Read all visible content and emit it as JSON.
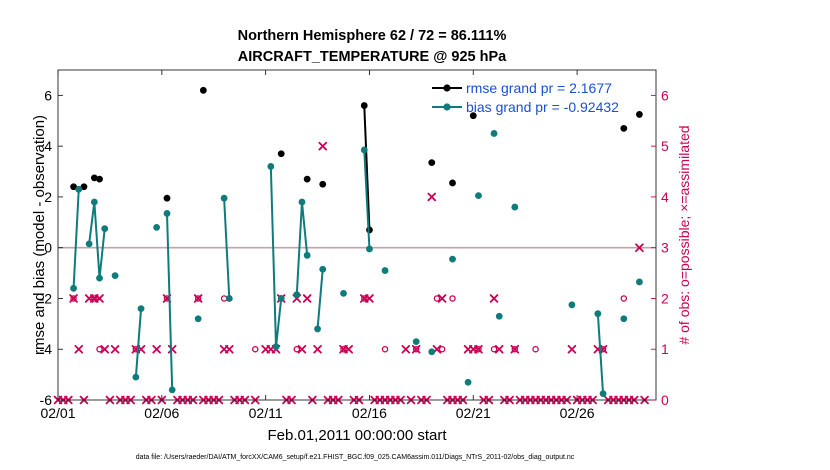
{
  "chart_data": {
    "type": "line",
    "title_line1": "Northern Hemisphere 62 / 72 = 86.111%",
    "title_line2": "AIRCRAFT_TEMPERATURE @ 925 hPa",
    "xlabel": "Feb.01,2011 00:00:00 start",
    "ylabel_left": "rmse and bias (model - observation)",
    "ylabel_right": "# of obs: o=possible; ×=assimilated",
    "footer": "data file: /Users/raeder/DAI/ATM_forcXX/CAM6_setup/f.e21.FHIST_BGC.f09_025.CAM6assim.011/Diags_NTrS_2011-02/obs_diag_output.nc",
    "xlim": [
      1,
      29.8
    ],
    "ylim_left": [
      -6,
      7
    ],
    "ylim_right": [
      0,
      6.5
    ],
    "x_ticks": [
      1,
      6,
      11,
      16,
      21,
      26
    ],
    "x_tick_labels": [
      "02/01",
      "02/06",
      "02/11",
      "02/16",
      "02/21",
      "02/26"
    ],
    "y_left_ticks": [
      -6,
      -4,
      -2,
      0,
      2,
      4,
      6
    ],
    "y_right_ticks": [
      0,
      1,
      2,
      3,
      4,
      5,
      6
    ],
    "zero_line": 0,
    "colors": {
      "rmse": "#000000",
      "bias": "#0f7b7b",
      "obs": "#cc0055",
      "legend_text": "#1a4fd6",
      "zero_line": "#c8a0a8"
    },
    "legend": {
      "placement": "top-right",
      "rmse_label": "rmse grand pr = 2.1677",
      "bias_label": "bias grand pr = -0.92432"
    },
    "series": [
      {
        "name": "rmse",
        "segments": [
          [
            [
              1.75,
              2.4
            ]
          ],
          [
            [
              2.25,
              2.4
            ]
          ],
          [
            [
              2.75,
              2.75
            ]
          ],
          [
            [
              3.0,
              2.7
            ]
          ],
          [
            [
              6.25,
              1.95
            ]
          ],
          [
            [
              8.0,
              6.2
            ]
          ],
          [
            [
              11.75,
              3.7
            ]
          ],
          [
            [
              13.0,
              2.7
            ]
          ],
          [
            [
              13.75,
              2.5
            ]
          ],
          [
            [
              15.75,
              5.6
            ],
            [
              16.0,
              0.7
            ]
          ],
          [
            [
              19.0,
              3.35
            ]
          ],
          [
            [
              20.0,
              2.55
            ]
          ],
          [
            [
              21.0,
              5.2
            ]
          ],
          [
            [
              28.25,
              4.7
            ]
          ],
          [
            [
              29.0,
              5.25
            ]
          ]
        ]
      },
      {
        "name": "bias",
        "segments": [
          [
            [
              1.75,
              -1.6
            ],
            [
              2.0,
              2.3
            ]
          ],
          [
            [
              2.5,
              0.15
            ],
            [
              2.75,
              1.8
            ],
            [
              3.0,
              -1.2
            ],
            [
              3.25,
              0.75
            ]
          ],
          [
            [
              3.75,
              -1.1
            ]
          ],
          [
            [
              4.75,
              -5.1
            ],
            [
              5.0,
              -2.4
            ]
          ],
          [
            [
              5.75,
              0.8
            ]
          ],
          [
            [
              6.25,
              1.35
            ],
            [
              6.5,
              -5.6
            ]
          ],
          [
            [
              7.75,
              -2.8
            ]
          ],
          [
            [
              9.0,
              1.95
            ],
            [
              9.25,
              -2.0
            ]
          ],
          [
            [
              11.25,
              3.2
            ],
            [
              11.5,
              -3.9
            ],
            [
              11.75,
              -2.0
            ]
          ],
          [
            [
              12.5,
              -1.85
            ],
            [
              12.75,
              1.8
            ],
            [
              13.0,
              -0.3
            ]
          ],
          [
            [
              13.5,
              -3.2
            ],
            [
              13.75,
              -0.85
            ]
          ],
          [
            [
              14.75,
              -1.8
            ]
          ],
          [
            [
              15.75,
              3.85
            ],
            [
              16.0,
              -0.05
            ]
          ],
          [
            [
              16.75,
              -0.9
            ]
          ],
          [
            [
              18.25,
              -3.7
            ]
          ],
          [
            [
              19.0,
              -4.1
            ]
          ],
          [
            [
              20.0,
              -0.45
            ]
          ],
          [
            [
              20.75,
              -5.3
            ]
          ],
          [
            [
              21.25,
              2.05
            ]
          ],
          [
            [
              22.0,
              4.5
            ]
          ],
          [
            [
              22.25,
              -2.7
            ]
          ],
          [
            [
              23.0,
              1.6
            ]
          ],
          [
            [
              25.75,
              -2.25
            ]
          ],
          [
            [
              27.0,
              -2.6
            ],
            [
              27.25,
              -5.75
            ]
          ],
          [
            [
              28.25,
              -2.8
            ]
          ],
          [
            [
              29.0,
              -1.35
            ]
          ]
        ]
      }
    ],
    "obs_assimilated": [
      {
        "x": 1.0,
        "n": 0
      },
      {
        "x": 1.25,
        "n": 0
      },
      {
        "x": 1.5,
        "n": 0
      },
      {
        "x": 1.75,
        "n": 2
      },
      {
        "x": 2.0,
        "n": 1
      },
      {
        "x": 2.25,
        "n": 0
      },
      {
        "x": 2.5,
        "n": 2
      },
      {
        "x": 2.75,
        "n": 2
      },
      {
        "x": 3.0,
        "n": 2
      },
      {
        "x": 3.25,
        "n": 1
      },
      {
        "x": 3.5,
        "n": 0
      },
      {
        "x": 3.75,
        "n": 1
      },
      {
        "x": 4.0,
        "n": 0
      },
      {
        "x": 4.25,
        "n": 0
      },
      {
        "x": 4.5,
        "n": 0
      },
      {
        "x": 4.75,
        "n": 1
      },
      {
        "x": 5.0,
        "n": 1
      },
      {
        "x": 5.25,
        "n": 0
      },
      {
        "x": 5.5,
        "n": 0
      },
      {
        "x": 5.75,
        "n": 1
      },
      {
        "x": 6.0,
        "n": 0
      },
      {
        "x": 6.25,
        "n": 2
      },
      {
        "x": 6.5,
        "n": 1
      },
      {
        "x": 6.75,
        "n": 0
      },
      {
        "x": 7.0,
        "n": 0
      },
      {
        "x": 7.25,
        "n": 0
      },
      {
        "x": 7.5,
        "n": 0
      },
      {
        "x": 7.75,
        "n": 2
      },
      {
        "x": 8.0,
        "n": 0
      },
      {
        "x": 8.25,
        "n": 0
      },
      {
        "x": 8.5,
        "n": 0
      },
      {
        "x": 8.75,
        "n": 0
      },
      {
        "x": 9.0,
        "n": 1
      },
      {
        "x": 9.25,
        "n": 1
      },
      {
        "x": 9.5,
        "n": 0
      },
      {
        "x": 9.75,
        "n": 0
      },
      {
        "x": 10.0,
        "n": 0
      },
      {
        "x": 10.5,
        "n": 0
      },
      {
        "x": 11.0,
        "n": 1
      },
      {
        "x": 11.25,
        "n": 1
      },
      {
        "x": 11.5,
        "n": 1
      },
      {
        "x": 11.75,
        "n": 2
      },
      {
        "x": 12.0,
        "n": 0
      },
      {
        "x": 12.25,
        "n": 0
      },
      {
        "x": 12.5,
        "n": 2
      },
      {
        "x": 12.75,
        "n": 1
      },
      {
        "x": 13.0,
        "n": 2
      },
      {
        "x": 13.25,
        "n": 0
      },
      {
        "x": 13.5,
        "n": 1
      },
      {
        "x": 13.75,
        "n": 5
      },
      {
        "x": 14.0,
        "n": 0
      },
      {
        "x": 14.25,
        "n": 0
      },
      {
        "x": 14.5,
        "n": 0
      },
      {
        "x": 14.75,
        "n": 1
      },
      {
        "x": 15.0,
        "n": 1
      },
      {
        "x": 15.25,
        "n": 0
      },
      {
        "x": 15.5,
        "n": 0
      },
      {
        "x": 15.75,
        "n": 2
      },
      {
        "x": 16.0,
        "n": 2
      },
      {
        "x": 16.25,
        "n": 0
      },
      {
        "x": 16.5,
        "n": 0
      },
      {
        "x": 16.75,
        "n": 0
      },
      {
        "x": 17.0,
        "n": 0
      },
      {
        "x": 17.25,
        "n": 0
      },
      {
        "x": 17.5,
        "n": 0
      },
      {
        "x": 17.75,
        "n": 1
      },
      {
        "x": 18.0,
        "n": 0
      },
      {
        "x": 18.25,
        "n": 1
      },
      {
        "x": 18.5,
        "n": 0
      },
      {
        "x": 18.75,
        "n": 0
      },
      {
        "x": 19.0,
        "n": 4
      },
      {
        "x": 19.25,
        "n": 1
      },
      {
        "x": 19.5,
        "n": 2
      },
      {
        "x": 19.75,
        "n": 0
      },
      {
        "x": 20.0,
        "n": 0
      },
      {
        "x": 20.25,
        "n": 0
      },
      {
        "x": 20.5,
        "n": 0
      },
      {
        "x": 20.75,
        "n": 1
      },
      {
        "x": 21.0,
        "n": 1
      },
      {
        "x": 21.25,
        "n": 1
      },
      {
        "x": 21.5,
        "n": 0
      },
      {
        "x": 21.75,
        "n": 0
      },
      {
        "x": 22.0,
        "n": 2
      },
      {
        "x": 22.25,
        "n": 1
      },
      {
        "x": 22.5,
        "n": 0
      },
      {
        "x": 22.75,
        "n": 0
      },
      {
        "x": 23.0,
        "n": 1
      },
      {
        "x": 23.25,
        "n": 0
      },
      {
        "x": 23.5,
        "n": 0
      },
      {
        "x": 23.75,
        "n": 0
      },
      {
        "x": 24.0,
        "n": 0
      },
      {
        "x": 24.25,
        "n": 0
      },
      {
        "x": 24.5,
        "n": 0
      },
      {
        "x": 24.75,
        "n": 0
      },
      {
        "x": 25.0,
        "n": 0
      },
      {
        "x": 25.25,
        "n": 0
      },
      {
        "x": 25.5,
        "n": 0
      },
      {
        "x": 25.75,
        "n": 1
      },
      {
        "x": 26.0,
        "n": 0
      },
      {
        "x": 26.25,
        "n": 0
      },
      {
        "x": 26.5,
        "n": 0
      },
      {
        "x": 26.75,
        "n": 0
      },
      {
        "x": 27.0,
        "n": 1
      },
      {
        "x": 27.25,
        "n": 1
      },
      {
        "x": 27.5,
        "n": 0
      },
      {
        "x": 27.75,
        "n": 0
      },
      {
        "x": 28.0,
        "n": 0
      },
      {
        "x": 28.25,
        "n": 0
      },
      {
        "x": 28.5,
        "n": 0
      },
      {
        "x": 28.75,
        "n": 0
      },
      {
        "x": 29.0,
        "n": 3
      },
      {
        "x": 29.25,
        "n": 0
      }
    ],
    "obs_possible": [
      {
        "x": 1.75,
        "n": 2
      },
      {
        "x": 2.75,
        "n": 2
      },
      {
        "x": 3.0,
        "n": 1
      },
      {
        "x": 4.75,
        "n": 1
      },
      {
        "x": 6.25,
        "n": 2
      },
      {
        "x": 7.75,
        "n": 2
      },
      {
        "x": 9.0,
        "n": 2
      },
      {
        "x": 10.5,
        "n": 1
      },
      {
        "x": 11.75,
        "n": 2
      },
      {
        "x": 12.5,
        "n": 1
      },
      {
        "x": 14.75,
        "n": 1
      },
      {
        "x": 15.75,
        "n": 2
      },
      {
        "x": 16.75,
        "n": 1
      },
      {
        "x": 18.25,
        "n": 1
      },
      {
        "x": 19.25,
        "n": 2
      },
      {
        "x": 19.5,
        "n": 1
      },
      {
        "x": 20.0,
        "n": 2
      },
      {
        "x": 21.25,
        "n": 1
      },
      {
        "x": 22.0,
        "n": 1
      },
      {
        "x": 23.0,
        "n": 1
      },
      {
        "x": 24.0,
        "n": 1
      },
      {
        "x": 27.25,
        "n": 1
      },
      {
        "x": 28.25,
        "n": 2
      }
    ]
  }
}
